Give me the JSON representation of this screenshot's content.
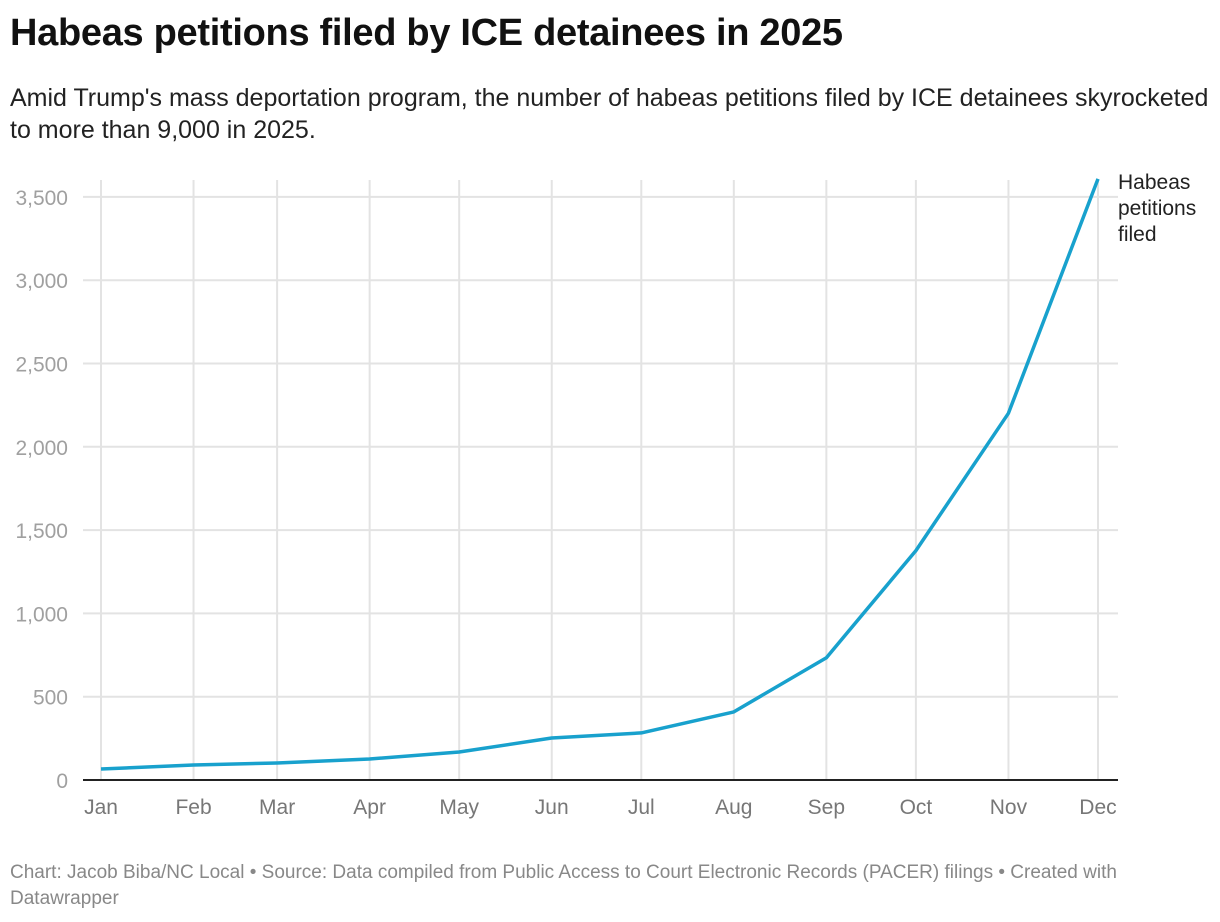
{
  "header": {
    "title": "Habeas petitions filed by ICE detainees in 2025",
    "subtitle": "Amid Trump's mass deportation program, the number of habeas petitions filed by ICE detainees skyrocketed to more than 9,000 in 2025."
  },
  "chart_data": {
    "type": "line",
    "title": "Habeas petitions filed by ICE detainees in 2025",
    "x": [
      "2025-01-01",
      "2025-02-01",
      "2025-03-01",
      "2025-04-01",
      "2025-05-01",
      "2025-06-01",
      "2025-07-01",
      "2025-08-01",
      "2025-09-01",
      "2025-10-01",
      "2025-11-01",
      "2025-12-01"
    ],
    "x_tick_labels": [
      "Jan",
      "Feb",
      "Mar",
      "Apr",
      "May",
      "Jun",
      "Jul",
      "Aug",
      "Sep",
      "Oct",
      "Nov",
      "Dec"
    ],
    "y_ticks": [
      0,
      500,
      1000,
      1500,
      2000,
      2500,
      3000,
      3500
    ],
    "y_tick_labels": [
      "0",
      "500",
      "1,000",
      "1,500",
      "2,000",
      "2,500",
      "3,000",
      "3,500"
    ],
    "ylim": [
      0,
      3600
    ],
    "grid": true,
    "series": [
      {
        "name": "Habeas petitions filed",
        "values": [
          66,
          90,
          102,
          126,
          168,
          252,
          283,
          409,
          734,
          1377,
          2201,
          3608
        ],
        "color": "#18a1cd"
      }
    ],
    "series_label_lines": [
      "Habeas",
      "petitions",
      "filed"
    ]
  },
  "footer": {
    "text": "Chart: Jacob Biba/NC Local • Source: Data compiled from Public Access to Court Electronic Records (PACER) filings • Created with Datawrapper"
  }
}
